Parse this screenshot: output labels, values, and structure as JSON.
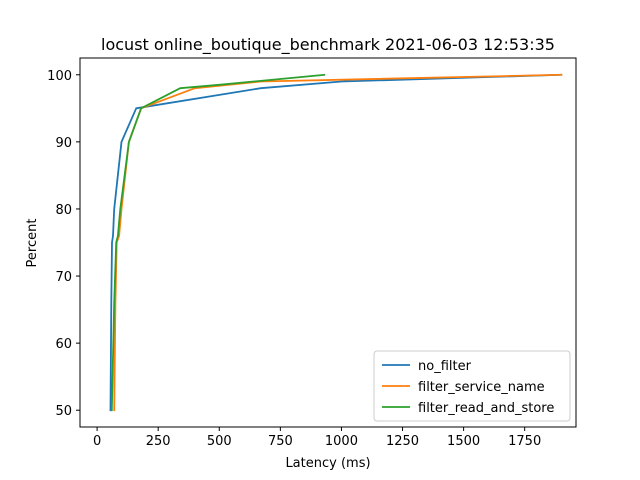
{
  "chart_data": {
    "type": "line",
    "title": "locust online_boutique_benchmark 2021-06-03 12:53:35",
    "xlabel": "Latency (ms)",
    "ylabel": "Percent",
    "xlim": [
      -70,
      1960
    ],
    "ylim": [
      47.5,
      102.5
    ],
    "xticks": [
      0,
      250,
      500,
      750,
      1000,
      1250,
      1500,
      1750
    ],
    "yticks": [
      50,
      60,
      70,
      80,
      90,
      100
    ],
    "grid": false,
    "legend_position": "lower-right",
    "series": [
      {
        "name": "no_filter",
        "color": "#1f77b4",
        "x": [
          55,
          58,
          61,
          65,
          70,
          100,
          160,
          670,
          1000,
          1900
        ],
        "y": [
          50,
          66,
          75,
          76,
          80,
          90,
          95,
          98,
          99,
          100
        ]
      },
      {
        "name": "filter_service_name",
        "color": "#ff7f0e",
        "x": [
          70,
          75,
          80,
          90,
          100,
          130,
          180,
          400,
          670,
          1900
        ],
        "y": [
          50,
          66,
          75,
          76,
          80,
          90,
          95,
          98,
          99,
          100
        ]
      },
      {
        "name": "filter_read_and_store",
        "color": "#2ca02c",
        "x": [
          60,
          70,
          78,
          85,
          95,
          130,
          180,
          340,
          500,
          930
        ],
        "y": [
          50,
          66,
          75,
          76,
          80,
          90,
          95,
          98,
          98.5,
          100
        ]
      }
    ]
  }
}
